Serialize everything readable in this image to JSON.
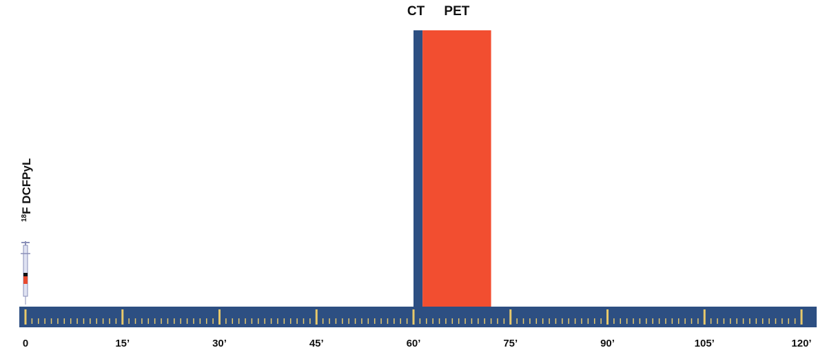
{
  "chart_data": {
    "type": "timeline",
    "xlim": [
      0,
      120
    ],
    "xticks": [
      0,
      {
        "value": 15,
        "label": "15’"
      },
      {
        "value": 30,
        "label": "30’"
      },
      {
        "value": 45,
        "label": "45’"
      },
      {
        "value": 60,
        "label": "60’"
      },
      {
        "value": 75,
        "label": "75’"
      },
      {
        "value": 90,
        "label": "90’"
      },
      {
        "value": 105,
        "label": "105’"
      },
      {
        "value": 120,
        "label": "120’"
      }
    ],
    "minor_tick_step": 1,
    "axis_color": "#2d4f82",
    "tick_color": "#e8c96a",
    "series": [
      {
        "name": "CT",
        "color": "#2d4f82",
        "start": 60,
        "end": 61.4
      },
      {
        "name": "PET",
        "color": "#f24e30",
        "start": 61.4,
        "end": 72
      }
    ],
    "injection": {
      "time": 0,
      "isotope": "18",
      "label": "F DCFPyL"
    }
  }
}
